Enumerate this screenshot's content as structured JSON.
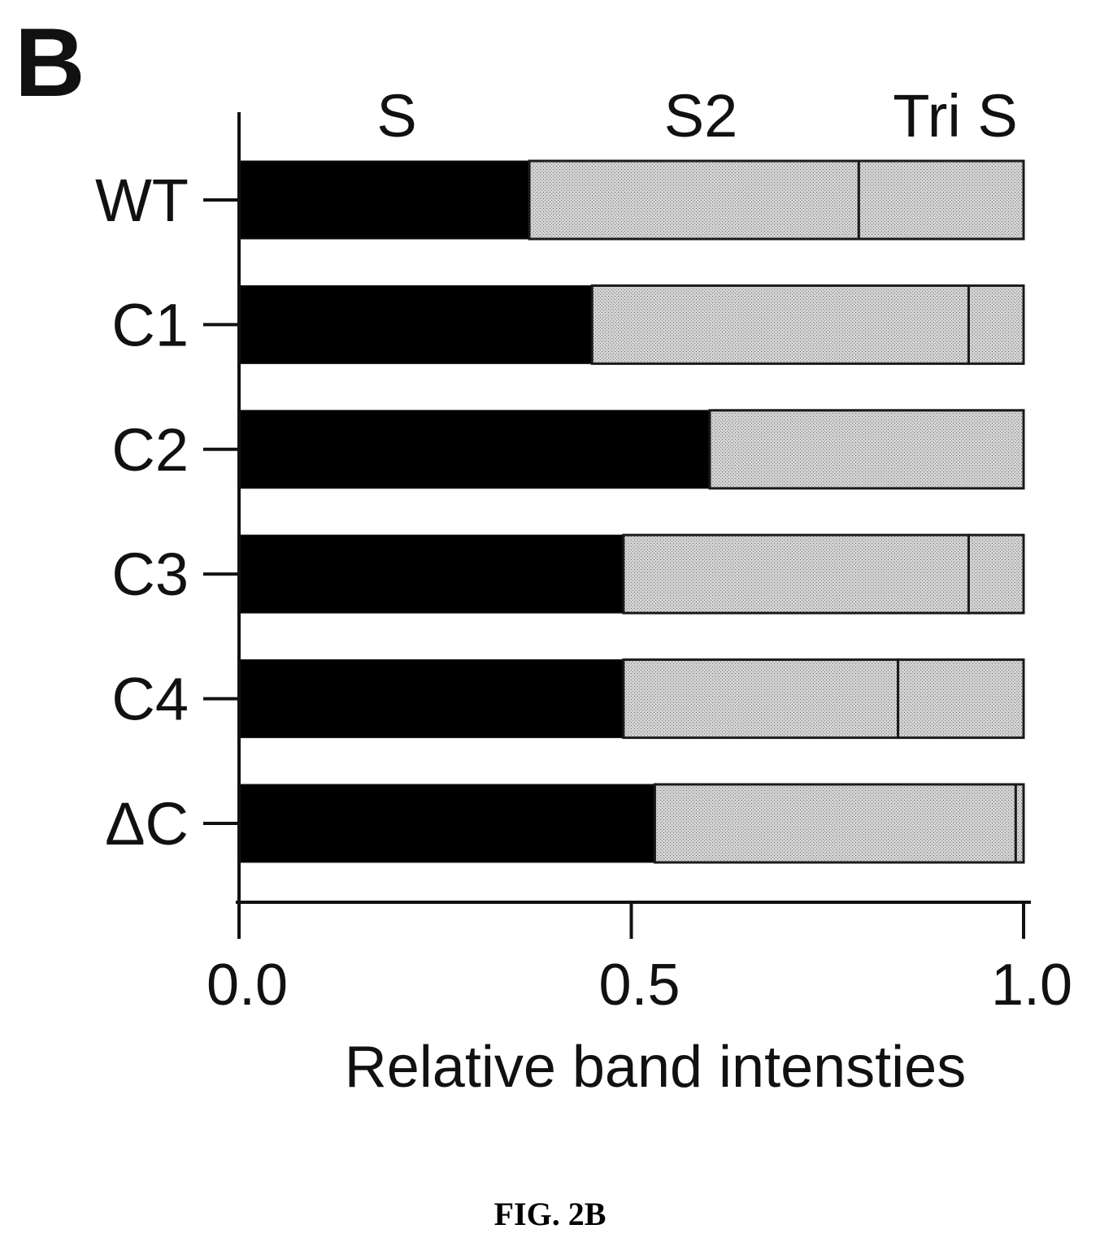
{
  "panel_label": "B",
  "caption": "FIG. 2B",
  "chart_data": {
    "type": "bar",
    "orientation": "horizontal",
    "stacked": true,
    "categories": [
      "WT",
      "C1",
      "C2",
      "C3",
      "C4",
      "ΔC"
    ],
    "series": [
      {
        "name": "S",
        "color": "#000000",
        "values": [
          0.37,
          0.45,
          0.6,
          0.49,
          0.49,
          0.53
        ]
      },
      {
        "name": "S2",
        "color": "#c4c4c4",
        "values": [
          0.42,
          0.48,
          0.4,
          0.44,
          0.35,
          0.46
        ]
      },
      {
        "name": "Tri S",
        "color": "#c4c4c4",
        "values": [
          0.21,
          0.07,
          0.0,
          0.07,
          0.16,
          0.01
        ]
      }
    ],
    "xlabel": "Relative band intensties",
    "ylabel": "",
    "xlim": [
      0.0,
      1.0
    ],
    "xticks": [
      "0.0",
      "0.5",
      "1.0"
    ],
    "legend": "top",
    "grid": false
  }
}
